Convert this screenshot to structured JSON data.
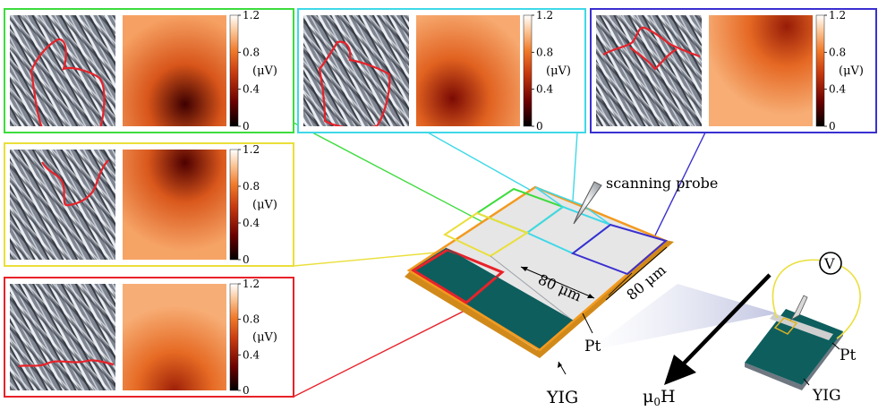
{
  "panels": [
    {
      "id": "green",
      "color": "#3ddc3d",
      "colorbar_ticks": [
        "1.2",
        "0.8",
        "0.4",
        "0"
      ],
      "unit": "(μV)",
      "heat_center": [
        0.6,
        0.8
      ],
      "heat_peak": 0.95
    },
    {
      "id": "cyan",
      "color": "#3fd8e8",
      "colorbar_ticks": [
        "1.2",
        "0.8",
        "0.4",
        "0"
      ],
      "unit": "(μV)",
      "heat_center": [
        0.35,
        0.75
      ],
      "heat_peak": 0.55
    },
    {
      "id": "blue",
      "color": "#3a2fd0",
      "colorbar_ticks": [
        "1.2",
        "0.8",
        "0.4",
        "0"
      ],
      "unit": "(μV)",
      "heat_center": [
        0.75,
        0.1
      ],
      "heat_peak": 0.35
    },
    {
      "id": "yellow",
      "color": "#eadf3a",
      "colorbar_ticks": [
        "1.2",
        "0.8",
        "0.4",
        "0"
      ],
      "unit": "(μV)",
      "heat_center": [
        0.6,
        0.12
      ],
      "heat_peak": 0.85
    },
    {
      "id": "red",
      "color": "#e8222a",
      "colorbar_ticks": [
        "1.2",
        "0.8",
        "0.4",
        "0"
      ],
      "unit": "(μV)",
      "heat_center": [
        0.5,
        1.0
      ],
      "heat_peak": 0.3
    }
  ],
  "labels": {
    "probe": "scanning probe",
    "dim_1": "80 μm",
    "dim_2": "80 μm",
    "pt_main": "Pt",
    "yig_main": "YIG",
    "field_mu": "μ",
    "field_sub": "0",
    "field_h": "H",
    "voltmeter": "V",
    "pt_small": "Pt",
    "yig_small": "YIG"
  },
  "colors": {
    "sample_border": "#f39a1f",
    "yig_fill": "#0e5e5e",
    "pt_fill": "#e6e6e6",
    "colormap": [
      "#000000",
      "#6b0000",
      "#c73a0f",
      "#f07a2a",
      "#fbc79a",
      "#ffffff"
    ]
  }
}
